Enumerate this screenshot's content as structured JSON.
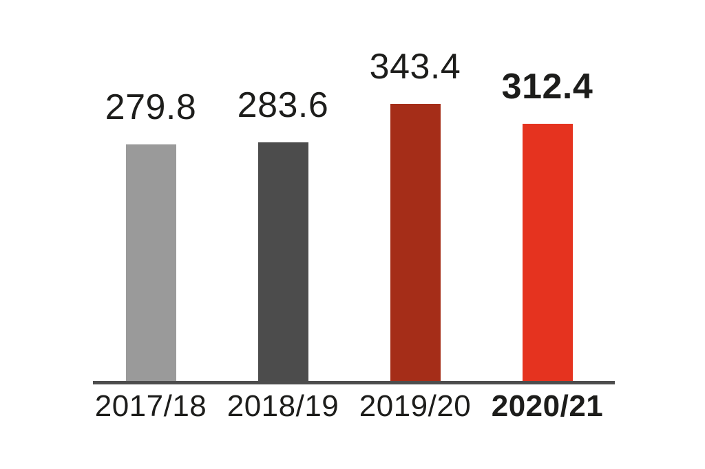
{
  "chart_data": {
    "type": "bar",
    "title": "",
    "xlabel": "",
    "ylabel": "",
    "categories": [
      "2017/18",
      "2018/19",
      "2019/20",
      "2020/21"
    ],
    "values": [
      279.8,
      283.6,
      343.4,
      312.4
    ],
    "display_values": [
      "279.8",
      "283.6",
      "343.4",
      "312.4"
    ],
    "bar_colors": [
      "#9a9a9a",
      "#4c4c4c",
      "#a52d18",
      "#e5331f"
    ],
    "emphasized_index": 3,
    "grid": false,
    "legend": false,
    "axis": {
      "x_axis_line": true,
      "line_color": "#4d4d4d"
    },
    "text_color": "#1d1d1b",
    "background": "#ffffff"
  }
}
